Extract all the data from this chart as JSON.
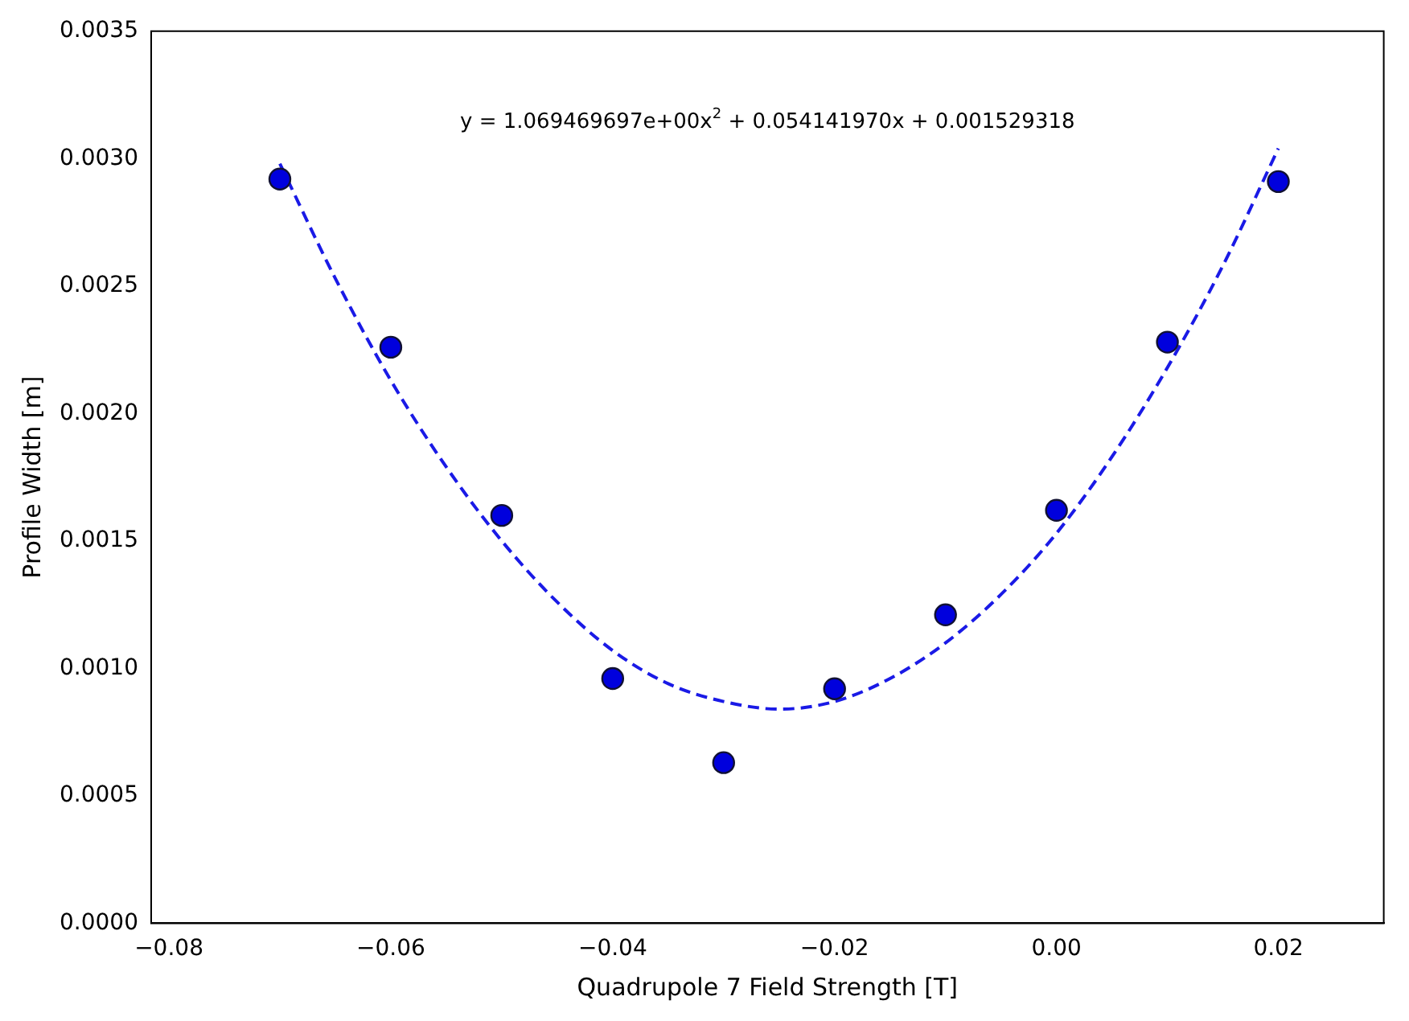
{
  "chart_data": {
    "type": "scatter",
    "xlabel": "Quadrupole 7 Field Strength [T]",
    "ylabel": "Profile Width [m]",
    "annotations": [
      "y = 1.069469697e+00x$^{2}$ + 0.054141970x + 0.001529318"
    ],
    "xlim": [
      -0.0816,
      0.0295
    ],
    "ylim": [
      0,
      0.0035
    ],
    "xticks": [
      {
        "value": -0.08,
        "label": "−0.08"
      },
      {
        "value": -0.06,
        "label": "−0.06"
      },
      {
        "value": -0.04,
        "label": "−0.04"
      },
      {
        "value": -0.02,
        "label": "−0.02"
      },
      {
        "value": 0,
        "label": "0.00"
      },
      {
        "value": 0.02,
        "label": "0.02"
      }
    ],
    "yticks": [
      {
        "value": 0,
        "label": "0.0000"
      },
      {
        "value": 0.0005,
        "label": "0.0005"
      },
      {
        "value": 0.001,
        "label": "0.0010"
      },
      {
        "value": 0.0015,
        "label": "0.0015"
      },
      {
        "value": 0.002,
        "label": "0.0020"
      },
      {
        "value": 0.0025,
        "label": "0.0025"
      },
      {
        "value": 0.003,
        "label": "0.0030"
      },
      {
        "value": 0.0035,
        "label": "0.0035"
      }
    ],
    "grid": false,
    "legend": false,
    "series": [
      {
        "type": "scatter",
        "color": "#0000dd",
        "marker": "circle",
        "x": [
          -0.07,
          -0.06,
          -0.05,
          -0.04,
          -0.03,
          -0.02,
          -0.01,
          0,
          0.01,
          0.02
        ],
        "values": [
          0.00292,
          0.00226,
          0.0016,
          0.00096,
          0.00063,
          0.00092,
          0.00121,
          0.00162,
          0.00228,
          0.00291
        ]
      },
      {
        "type": "line",
        "color": "#1a1ae6",
        "marker": "none",
        "line_style": "dashed",
        "x": [
          -0.07,
          -0.065,
          -0.06,
          -0.055,
          -0.05,
          -0.045,
          -0.04,
          -0.035,
          -0.03,
          -0.025,
          -0.02,
          -0.015,
          -0.01,
          -0.005,
          0,
          0.005,
          0.01,
          0.015,
          0.02
        ],
        "values": [
          0.00298,
          0.00253,
          0.00213,
          0.00179,
          0.0015,
          0.00126,
          0.00107,
          0.00094,
          0.00087,
          0.00084,
          0.00087,
          0.00096,
          0.0011,
          0.00129,
          0.00153,
          0.00183,
          0.00218,
          0.00258,
          0.00304
        ]
      }
    ]
  }
}
